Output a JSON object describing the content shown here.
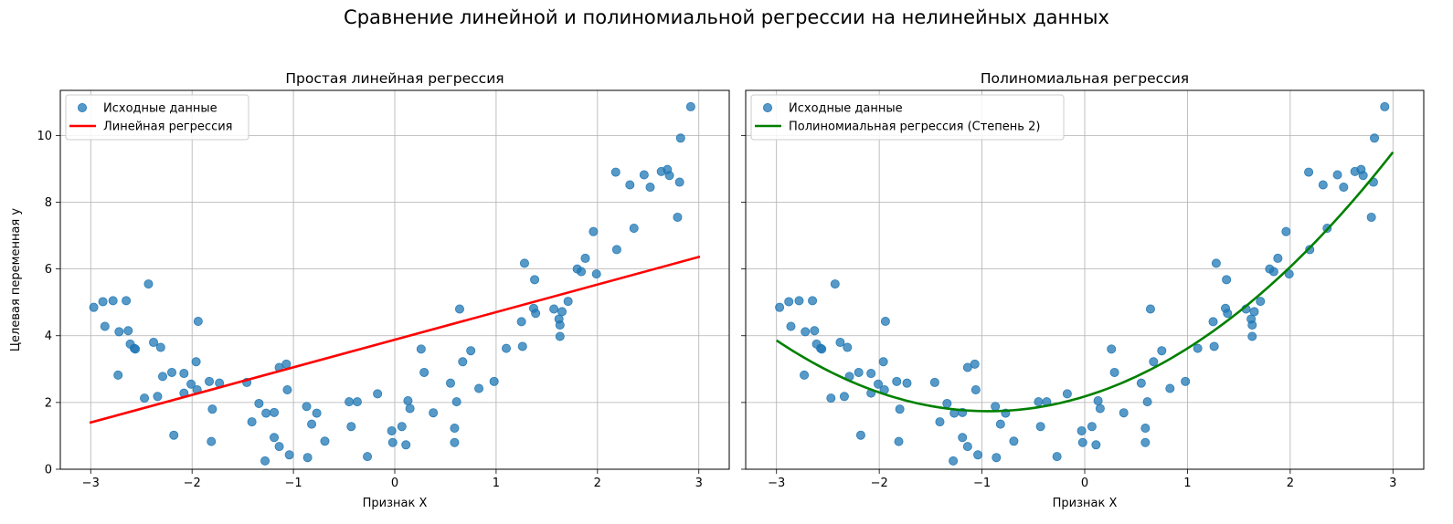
{
  "suptitle": "Сравнение линейной и полиномиальной регрессии на нелинейных данных",
  "colors": {
    "points": "#1f77b4",
    "linear": "#ff0000",
    "poly": "#008000",
    "grid": "#b0b0b0"
  },
  "chart_data": [
    {
      "type": "scatter",
      "title": "Простая линейная регрессия",
      "xlabel": "Признак X",
      "ylabel": "Целевая переменная y",
      "xlim": [
        -3.3,
        3.3
      ],
      "ylim": [
        0,
        11.35
      ],
      "xticks": [
        -3,
        -2,
        -1,
        0,
        1,
        2,
        3
      ],
      "yticks": [
        0,
        2,
        4,
        6,
        8,
        10
      ],
      "grid": true,
      "legend": "top-left",
      "series": [
        {
          "name": "Исходные данные",
          "kind": "points",
          "points": [
            [
              -2.97,
              4.85
            ],
            [
              -2.88,
              5.02
            ],
            [
              -2.86,
              4.28
            ],
            [
              -2.78,
              5.05
            ],
            [
              -2.73,
              2.82
            ],
            [
              -2.72,
              4.12
            ],
            [
              -2.65,
              5.05
            ],
            [
              -2.63,
              4.15
            ],
            [
              -2.61,
              3.75
            ],
            [
              -2.57,
              3.62
            ],
            [
              -2.56,
              3.6
            ],
            [
              -2.47,
              2.13
            ],
            [
              -2.43,
              5.55
            ],
            [
              -2.38,
              3.8
            ],
            [
              -2.34,
              2.18
            ],
            [
              -2.31,
              3.65
            ],
            [
              -2.29,
              2.78
            ],
            [
              -2.2,
              2.9
            ],
            [
              -2.18,
              1.02
            ],
            [
              -2.08,
              2.87
            ],
            [
              -2.08,
              2.28
            ],
            [
              -2.01,
              2.55
            ],
            [
              -1.96,
              3.22
            ],
            [
              -1.95,
              2.38
            ],
            [
              -1.94,
              4.43
            ],
            [
              -1.83,
              2.63
            ],
            [
              -1.81,
              0.83
            ],
            [
              -1.8,
              1.8
            ],
            [
              -1.73,
              2.58
            ],
            [
              -1.46,
              2.6
            ],
            [
              -1.41,
              1.42
            ],
            [
              -1.34,
              1.97
            ],
            [
              -1.28,
              0.25
            ],
            [
              -1.27,
              1.68
            ],
            [
              -1.19,
              1.7
            ],
            [
              -1.19,
              0.95
            ],
            [
              -1.14,
              3.05
            ],
            [
              -1.14,
              0.68
            ],
            [
              -1.07,
              3.15
            ],
            [
              -1.06,
              2.38
            ],
            [
              -1.04,
              0.43
            ],
            [
              -0.87,
              1.88
            ],
            [
              -0.86,
              0.35
            ],
            [
              -0.82,
              1.35
            ],
            [
              -0.77,
              1.68
            ],
            [
              -0.69,
              0.84
            ],
            [
              -0.45,
              2.02
            ],
            [
              -0.43,
              1.28
            ],
            [
              -0.37,
              2.02
            ],
            [
              -0.27,
              0.38
            ],
            [
              -0.17,
              2.26
            ],
            [
              -0.03,
              1.15
            ],
            [
              -0.02,
              0.8
            ],
            [
              0.07,
              1.28
            ],
            [
              0.11,
              0.73
            ],
            [
              0.13,
              2.05
            ],
            [
              0.15,
              1.82
            ],
            [
              0.26,
              3.6
            ],
            [
              0.29,
              2.9
            ],
            [
              0.38,
              1.69
            ],
            [
              0.55,
              2.58
            ],
            [
              0.59,
              1.23
            ],
            [
              0.59,
              0.8
            ],
            [
              0.61,
              2.02
            ],
            [
              0.64,
              4.8
            ],
            [
              0.67,
              3.22
            ],
            [
              0.75,
              3.55
            ],
            [
              0.83,
              2.42
            ],
            [
              0.98,
              2.63
            ],
            [
              1.1,
              3.62
            ],
            [
              1.25,
              4.42
            ],
            [
              1.26,
              3.68
            ],
            [
              1.28,
              6.17
            ],
            [
              1.37,
              4.82
            ],
            [
              1.38,
              5.68
            ],
            [
              1.39,
              4.67
            ],
            [
              1.57,
              4.8
            ],
            [
              1.62,
              4.5
            ],
            [
              1.63,
              4.32
            ],
            [
              1.63,
              3.98
            ],
            [
              1.65,
              4.72
            ],
            [
              1.71,
              5.03
            ],
            [
              1.8,
              6.0
            ],
            [
              1.84,
              5.92
            ],
            [
              1.88,
              6.32
            ],
            [
              1.96,
              7.12
            ],
            [
              1.99,
              5.85
            ],
            [
              2.18,
              8.9
            ],
            [
              2.19,
              6.58
            ],
            [
              2.32,
              8.52
            ],
            [
              2.36,
              7.22
            ],
            [
              2.46,
              8.82
            ],
            [
              2.52,
              8.45
            ],
            [
              2.63,
              8.92
            ],
            [
              2.69,
              8.98
            ],
            [
              2.71,
              8.8
            ],
            [
              2.79,
              7.55
            ],
            [
              2.81,
              8.6
            ],
            [
              2.82,
              9.92
            ],
            [
              2.92,
              10.86
            ]
          ]
        },
        {
          "name": "Линейная регрессия",
          "kind": "line",
          "x": [
            -3,
            3
          ],
          "y": [
            1.4,
            6.36
          ]
        }
      ]
    },
    {
      "type": "scatter",
      "title": "Полиномиальная регрессия",
      "xlabel": "Признак X",
      "ylabel": "",
      "xlim": [
        -3.3,
        3.3
      ],
      "ylim": [
        0,
        11.35
      ],
      "xticks": [
        -3,
        -2,
        -1,
        0,
        1,
        2,
        3
      ],
      "yticks": [
        0,
        2,
        4,
        6,
        8,
        10
      ],
      "grid": true,
      "legend": "top-left",
      "series": [
        {
          "name": "Исходные данные",
          "kind": "points",
          "same_points_as_panel": 0
        },
        {
          "name": "Полиномиальная регрессия (Степень 2)",
          "kind": "quadratic",
          "x_range": [
            -3,
            3
          ],
          "coefficients": {
            "a": 0.5,
            "b": 0.94,
            "c": 2.18
          }
        }
      ]
    }
  ]
}
